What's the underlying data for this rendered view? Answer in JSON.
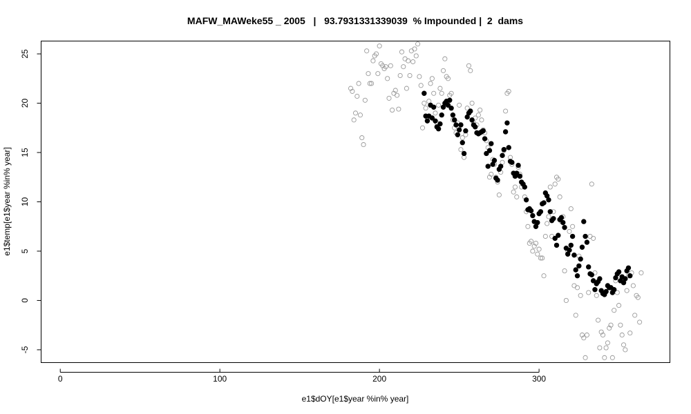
{
  "chart_data": {
    "type": "scatter",
    "title": "MAFW_MAWeke55 _ 2005   |   93.7931331339039  % Impounded |  2  dams",
    "xlabel": "e1$dOY[e1$year %in% year]",
    "ylabel": "e1$temp[e1$year %in% year]",
    "xlim": [
      -12,
      382
    ],
    "ylim": [
      -6.3,
      26.3
    ],
    "x_ticks": [
      0,
      100,
      200,
      300
    ],
    "y_ticks": [
      -5,
      0,
      5,
      10,
      15,
      20,
      25
    ],
    "grid": false,
    "legend": "none",
    "colors": {
      "open_series": "#999999",
      "filled_series": "#000000"
    },
    "series": [
      {
        "marker": "open-circle",
        "points": [
          [
            182,
            21.5
          ],
          [
            183,
            21.2
          ],
          [
            184,
            18.3
          ],
          [
            185,
            19.0
          ],
          [
            186,
            20.7
          ],
          [
            187,
            22.0
          ],
          [
            188,
            18.8
          ],
          [
            189,
            16.5
          ],
          [
            190,
            15.8
          ],
          [
            191,
            20.3
          ],
          [
            192,
            25.3
          ],
          [
            193,
            23.0
          ],
          [
            194,
            22.0
          ],
          [
            195,
            22.0
          ],
          [
            196,
            24.3
          ],
          [
            197,
            24.8
          ],
          [
            198,
            25.0
          ],
          [
            199,
            23.0
          ],
          [
            200,
            25.8
          ],
          [
            201,
            24.0
          ],
          [
            202,
            23.8
          ],
          [
            203,
            23.5
          ],
          [
            204,
            23.7
          ],
          [
            205,
            22.5
          ],
          [
            206,
            20.5
          ],
          [
            207,
            23.8
          ],
          [
            208,
            19.3
          ],
          [
            209,
            21.0
          ],
          [
            210,
            21.3
          ],
          [
            211,
            20.8
          ],
          [
            212,
            19.4
          ],
          [
            213,
            22.8
          ],
          [
            214,
            25.2
          ],
          [
            215,
            23.7
          ],
          [
            216,
            24.5
          ],
          [
            217,
            21.5
          ],
          [
            218,
            24.3
          ],
          [
            219,
            22.8
          ],
          [
            220,
            25.3
          ],
          [
            221,
            24.2
          ],
          [
            222,
            25.5
          ],
          [
            223,
            24.8
          ],
          [
            224,
            26.0
          ],
          [
            225,
            22.7
          ],
          [
            226,
            21.8
          ],
          [
            227,
            17.5
          ],
          [
            228,
            20.0
          ],
          [
            229,
            19.5
          ],
          [
            230,
            18.5
          ],
          [
            231,
            20.2
          ],
          [
            232,
            22.0
          ],
          [
            233,
            22.5
          ],
          [
            234,
            21.0
          ],
          [
            235,
            19.0
          ],
          [
            236,
            18.0
          ],
          [
            237,
            19.8
          ],
          [
            238,
            21.5
          ],
          [
            239,
            21.0
          ],
          [
            240,
            23.3
          ],
          [
            241,
            24.5
          ],
          [
            242,
            22.7
          ],
          [
            243,
            22.5
          ],
          [
            244,
            20.8
          ],
          [
            245,
            21.0
          ],
          [
            246,
            18.3
          ],
          [
            247,
            17.5
          ],
          [
            248,
            17.0
          ],
          [
            249,
            18.0
          ],
          [
            250,
            19.8
          ],
          [
            251,
            15.3
          ],
          [
            252,
            16.5
          ],
          [
            253,
            14.5
          ],
          [
            254,
            16.8
          ],
          [
            255,
            19.5
          ],
          [
            256,
            23.8
          ],
          [
            257,
            23.3
          ],
          [
            258,
            20.0
          ],
          [
            259,
            18.0
          ],
          [
            260,
            18.5
          ],
          [
            261,
            17.8
          ],
          [
            262,
            18.8
          ],
          [
            263,
            19.3
          ],
          [
            264,
            18.3
          ],
          [
            265,
            17.3
          ],
          [
            266,
            17.0
          ],
          [
            267,
            16.2
          ],
          [
            268,
            15.5
          ],
          [
            269,
            12.5
          ],
          [
            270,
            12.8
          ],
          [
            271,
            14.3
          ],
          [
            272,
            13.8
          ],
          [
            273,
            12.5
          ],
          [
            274,
            12.0
          ],
          [
            275,
            10.7
          ],
          [
            276,
            13.0
          ],
          [
            277,
            14.0
          ],
          [
            278,
            15.2
          ],
          [
            279,
            19.2
          ],
          [
            280,
            21.0
          ],
          [
            281,
            21.2
          ],
          [
            282,
            14.5
          ],
          [
            283,
            13.8
          ],
          [
            284,
            11.0
          ],
          [
            285,
            11.5
          ],
          [
            286,
            10.5
          ],
          [
            287,
            13.5
          ],
          [
            288,
            12.8
          ],
          [
            289,
            11.5
          ],
          [
            290,
            11.8
          ],
          [
            291,
            10.5
          ],
          [
            292,
            9.0
          ],
          [
            293,
            7.5
          ],
          [
            294,
            5.8
          ],
          [
            295,
            6.0
          ],
          [
            296,
            5.0
          ],
          [
            297,
            5.5
          ],
          [
            298,
            5.8
          ],
          [
            299,
            4.7
          ],
          [
            300,
            5.2
          ],
          [
            301,
            4.3
          ],
          [
            302,
            4.3
          ],
          [
            303,
            2.5
          ],
          [
            304,
            6.5
          ],
          [
            305,
            7.8
          ],
          [
            306,
            8.5
          ],
          [
            307,
            11.5
          ],
          [
            308,
            6.5
          ],
          [
            309,
            9.0
          ],
          [
            310,
            11.8
          ],
          [
            311,
            12.5
          ],
          [
            312,
            12.3
          ],
          [
            313,
            10.5
          ],
          [
            314,
            8.0
          ],
          [
            315,
            8.5
          ],
          [
            316,
            3.0
          ],
          [
            317,
            0.0
          ],
          [
            318,
            5.0
          ],
          [
            319,
            7.0
          ],
          [
            320,
            9.3
          ],
          [
            321,
            7.5
          ],
          [
            322,
            1.5
          ],
          [
            323,
            -1.5
          ],
          [
            324,
            1.3
          ],
          [
            325,
            4.5
          ],
          [
            326,
            0.5
          ],
          [
            327,
            -3.5
          ],
          [
            328,
            -3.8
          ],
          [
            329,
            -5.8
          ],
          [
            330,
            -3.5
          ],
          [
            331,
            0.8
          ],
          [
            332,
            6.5
          ],
          [
            333,
            11.8
          ],
          [
            334,
            6.3
          ],
          [
            335,
            2.8
          ],
          [
            336,
            0.5
          ],
          [
            337,
            -2.0
          ],
          [
            338,
            -4.8
          ],
          [
            339,
            -3.2
          ],
          [
            340,
            -3.5
          ],
          [
            341,
            -5.8
          ],
          [
            342,
            -4.8
          ],
          [
            343,
            -4.3
          ],
          [
            344,
            -2.8
          ],
          [
            345,
            -2.5
          ],
          [
            346,
            -5.8
          ],
          [
            347,
            -1.0
          ],
          [
            348,
            2.0
          ],
          [
            349,
            0.8
          ],
          [
            350,
            -0.5
          ],
          [
            351,
            -2.5
          ],
          [
            352,
            -3.5
          ],
          [
            353,
            -4.5
          ],
          [
            354,
            -5.0
          ],
          [
            355,
            1.0
          ],
          [
            356,
            2.5
          ],
          [
            357,
            -3.3
          ],
          [
            358,
            2.8
          ],
          [
            359,
            1.5
          ],
          [
            360,
            -1.5
          ],
          [
            361,
            0.5
          ],
          [
            362,
            0.3
          ],
          [
            363,
            -2.2
          ],
          [
            364,
            2.8
          ]
        ]
      },
      {
        "marker": "filled-circle",
        "points": [
          [
            228,
            21.0
          ],
          [
            229,
            18.7
          ],
          [
            230,
            18.2
          ],
          [
            231,
            18.7
          ],
          [
            232,
            19.8
          ],
          [
            233,
            18.5
          ],
          [
            234,
            19.6
          ],
          [
            235,
            18.2
          ],
          [
            236,
            17.6
          ],
          [
            237,
            17.4
          ],
          [
            238,
            17.9
          ],
          [
            239,
            18.8
          ],
          [
            240,
            19.6
          ],
          [
            241,
            20.0
          ],
          [
            242,
            20.2
          ],
          [
            243,
            19.8
          ],
          [
            244,
            20.3
          ],
          [
            245,
            19.5
          ],
          [
            246,
            18.8
          ],
          [
            247,
            18.3
          ],
          [
            248,
            17.8
          ],
          [
            249,
            16.8
          ],
          [
            250,
            17.3
          ],
          [
            251,
            17.8
          ],
          [
            252,
            16.0
          ],
          [
            253,
            14.9
          ],
          [
            254,
            17.2
          ],
          [
            255,
            18.6
          ],
          [
            256,
            19.0
          ],
          [
            257,
            19.2
          ],
          [
            258,
            18.3
          ],
          [
            259,
            17.8
          ],
          [
            260,
            17.6
          ],
          [
            261,
            17.0
          ],
          [
            262,
            16.9
          ],
          [
            263,
            17.0
          ],
          [
            264,
            17.1
          ],
          [
            265,
            17.2
          ],
          [
            266,
            16.4
          ],
          [
            267,
            14.9
          ],
          [
            268,
            13.6
          ],
          [
            269,
            15.2
          ],
          [
            270,
            15.9
          ],
          [
            271,
            13.8
          ],
          [
            272,
            14.2
          ],
          [
            273,
            12.4
          ],
          [
            274,
            12.2
          ],
          [
            275,
            13.3
          ],
          [
            276,
            13.6
          ],
          [
            277,
            14.7
          ],
          [
            278,
            15.3
          ],
          [
            279,
            17.1
          ],
          [
            280,
            18.0
          ],
          [
            281,
            15.5
          ],
          [
            282,
            14.1
          ],
          [
            283,
            14.0
          ],
          [
            284,
            12.9
          ],
          [
            285,
            12.6
          ],
          [
            286,
            12.9
          ],
          [
            287,
            13.7
          ],
          [
            288,
            12.6
          ],
          [
            289,
            12.0
          ],
          [
            290,
            11.8
          ],
          [
            291,
            11.5
          ],
          [
            292,
            10.2
          ],
          [
            293,
            9.2
          ],
          [
            294,
            9.3
          ],
          [
            295,
            9.1
          ],
          [
            296,
            8.6
          ],
          [
            297,
            8.0
          ],
          [
            298,
            7.5
          ],
          [
            299,
            7.9
          ],
          [
            300,
            8.8
          ],
          [
            301,
            9.0
          ],
          [
            302,
            9.8
          ],
          [
            303,
            9.9
          ],
          [
            304,
            10.9
          ],
          [
            305,
            10.6
          ],
          [
            306,
            10.2
          ],
          [
            307,
            9.0
          ],
          [
            308,
            8.1
          ],
          [
            309,
            8.3
          ],
          [
            310,
            6.3
          ],
          [
            311,
            5.6
          ],
          [
            312,
            6.6
          ],
          [
            313,
            8.2
          ],
          [
            314,
            8.4
          ],
          [
            315,
            7.9
          ],
          [
            316,
            7.4
          ],
          [
            317,
            5.3
          ],
          [
            318,
            4.7
          ],
          [
            319,
            5.1
          ],
          [
            320,
            5.6
          ],
          [
            321,
            6.5
          ],
          [
            322,
            4.6
          ],
          [
            323,
            3.1
          ],
          [
            324,
            2.5
          ],
          [
            325,
            3.5
          ],
          [
            326,
            4.2
          ],
          [
            327,
            5.4
          ],
          [
            328,
            8.0
          ],
          [
            329,
            6.5
          ],
          [
            330,
            5.9
          ],
          [
            331,
            3.4
          ],
          [
            332,
            2.7
          ],
          [
            333,
            2.6
          ],
          [
            334,
            2.0
          ],
          [
            335,
            1.1
          ],
          [
            336,
            1.7
          ],
          [
            337,
            1.9
          ],
          [
            338,
            2.2
          ],
          [
            339,
            1.0
          ],
          [
            340,
            0.7
          ],
          [
            341,
            0.6
          ],
          [
            342,
            0.9
          ],
          [
            343,
            1.5
          ],
          [
            344,
            1.3
          ],
          [
            345,
            1.3
          ],
          [
            346,
            0.8
          ],
          [
            347,
            1.1
          ],
          [
            348,
            2.3
          ],
          [
            349,
            2.7
          ],
          [
            350,
            2.9
          ],
          [
            351,
            2.0
          ],
          [
            352,
            2.4
          ],
          [
            353,
            1.8
          ],
          [
            354,
            2.2
          ],
          [
            355,
            3.0
          ],
          [
            356,
            3.3
          ],
          [
            357,
            2.5
          ]
        ]
      }
    ]
  }
}
